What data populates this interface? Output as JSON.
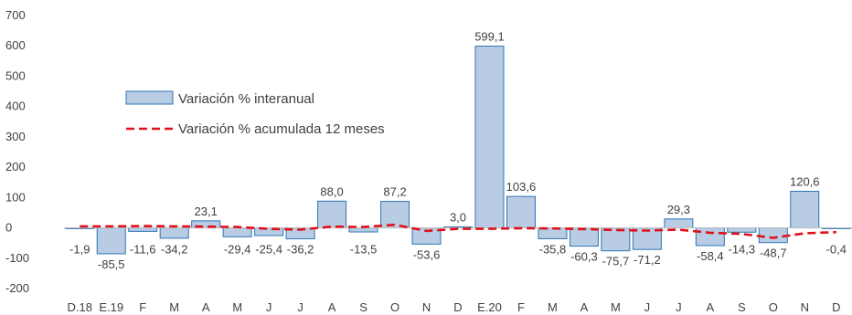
{
  "chart_data": {
    "type": "bar",
    "categories": [
      "D.18",
      "E.19",
      "F",
      "M",
      "A",
      "M",
      "J",
      "J",
      "A",
      "S",
      "O",
      "N",
      "D",
      "E.20",
      "F",
      "M",
      "A",
      "M",
      "J",
      "J",
      "A",
      "S",
      "O",
      "N",
      "D"
    ],
    "series": [
      {
        "name": "Variación % interanual",
        "kind": "bar",
        "values": [
          -1.9,
          -85.5,
          -11.6,
          -34.2,
          23.1,
          -29.4,
          -25.4,
          -36.2,
          88.0,
          -13.5,
          87.2,
          -53.6,
          3.0,
          599.1,
          103.6,
          -35.8,
          -60.3,
          -75.7,
          -71.2,
          29.3,
          -58.4,
          -14.3,
          -48.7,
          120.6,
          -0.4
        ],
        "labels": [
          "-1,9",
          "-85,5",
          "-11,6",
          "-34,2",
          "23,1",
          "-29,4",
          "-25,4",
          "-36,2",
          "88,0",
          "-13,5",
          "87,2",
          "-53,6",
          "3,0",
          "599,1",
          "103,6",
          "-35,8",
          "-60,3",
          "-75,7",
          "-71,2",
          "29,3",
          "-58,4",
          "-14,3",
          "-48,7",
          "120,6",
          "-0,4"
        ],
        "color": "#b8cce4",
        "border": "#2e75b6"
      },
      {
        "name": "Variación % acumulada 12 meses",
        "kind": "line",
        "values": [
          5,
          5,
          6,
          5,
          4,
          3,
          -3,
          -6,
          4,
          3,
          10,
          -10,
          -3,
          -3,
          -1,
          -2,
          -4,
          -7,
          -9,
          -6,
          -16,
          -20,
          -33,
          -18,
          -14
        ],
        "color": "#e0101a"
      }
    ],
    "ylim": [
      -200,
      700
    ],
    "yticks": [
      -200,
      -100,
      0,
      100,
      200,
      300,
      400,
      500,
      600,
      700
    ],
    "grid": false,
    "legend": "upper-left"
  }
}
